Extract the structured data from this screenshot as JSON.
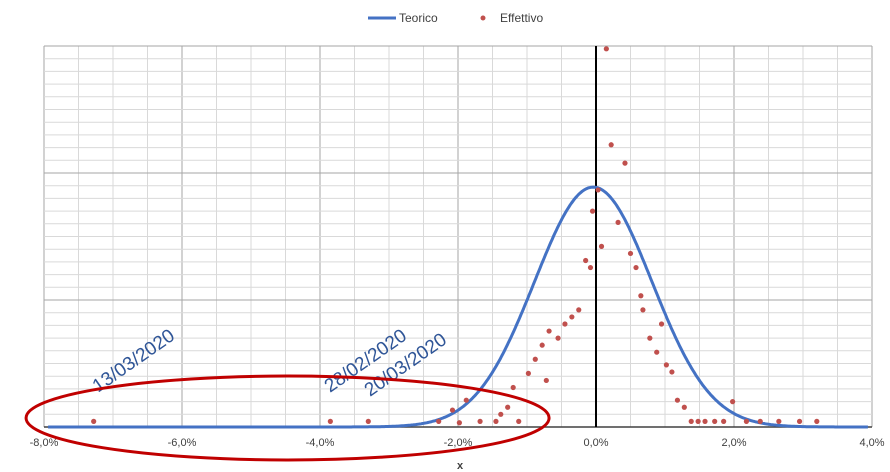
{
  "chart_data": {
    "type": "line",
    "title": "",
    "xlabel": "x",
    "ylabel": "",
    "xlim": [
      -0.08,
      0.04
    ],
    "ylim": [
      0,
      0.27
    ],
    "x_ticks": [
      -0.08,
      -0.06,
      -0.04,
      -0.02,
      0.0,
      0.02,
      0.04
    ],
    "x_tick_labels": [
      "-8,0%",
      "-6,0%",
      "-4,0%",
      "-2,0%",
      "0,0%",
      "2,0%",
      "4,0%"
    ],
    "grid": true,
    "legend": {
      "position": "top-center",
      "entries": [
        {
          "label": "Teorico",
          "color": "#4472c4",
          "marker": "line"
        },
        {
          "label": "Effettivo",
          "color": "#c0504d",
          "marker": "dot"
        }
      ]
    },
    "series": [
      {
        "name": "Teorico",
        "style": "line",
        "color": "#4472c4",
        "distribution": {
          "kind": "normal",
          "mean": -0.0004,
          "sd": 0.0085,
          "peak": 0.17
        }
      },
      {
        "name": "Effettivo",
        "style": "scatter",
        "color": "#c0504d",
        "points": [
          {
            "x": -0.0728,
            "y": 0.004
          },
          {
            "x": -0.0385,
            "y": 0.004
          },
          {
            "x": -0.033,
            "y": 0.004
          },
          {
            "x": -0.0228,
            "y": 0.004
          },
          {
            "x": -0.0208,
            "y": 0.012
          },
          {
            "x": -0.0198,
            "y": 0.003
          },
          {
            "x": -0.0188,
            "y": 0.019
          },
          {
            "x": -0.0168,
            "y": 0.004
          },
          {
            "x": -0.0145,
            "y": 0.004
          },
          {
            "x": -0.0138,
            "y": 0.009
          },
          {
            "x": -0.0128,
            "y": 0.014
          },
          {
            "x": -0.012,
            "y": 0.028
          },
          {
            "x": -0.0112,
            "y": 0.004
          },
          {
            "x": -0.0098,
            "y": 0.038
          },
          {
            "x": -0.0088,
            "y": 0.048
          },
          {
            "x": -0.0078,
            "y": 0.058
          },
          {
            "x": -0.0068,
            "y": 0.068
          },
          {
            "x": -0.0072,
            "y": 0.033
          },
          {
            "x": -0.0055,
            "y": 0.063
          },
          {
            "x": -0.0045,
            "y": 0.073
          },
          {
            "x": -0.0035,
            "y": 0.078
          },
          {
            "x": -0.0025,
            "y": 0.083
          },
          {
            "x": -0.0015,
            "y": 0.118
          },
          {
            "x": -0.0008,
            "y": 0.113
          },
          {
            "x": 0.0003,
            "y": 0.168
          },
          {
            "x": -0.0005,
            "y": 0.153
          },
          {
            "x": 0.0008,
            "y": 0.128
          },
          {
            "x": 0.0015,
            "y": 0.268
          },
          {
            "x": 0.0022,
            "y": 0.2
          },
          {
            "x": 0.0032,
            "y": 0.145
          },
          {
            "x": 0.0042,
            "y": 0.187
          },
          {
            "x": 0.005,
            "y": 0.123
          },
          {
            "x": 0.0058,
            "y": 0.113
          },
          {
            "x": 0.0065,
            "y": 0.093
          },
          {
            "x": 0.0068,
            "y": 0.083
          },
          {
            "x": 0.0078,
            "y": 0.063
          },
          {
            "x": 0.0088,
            "y": 0.053
          },
          {
            "x": 0.0095,
            "y": 0.073
          },
          {
            "x": 0.0102,
            "y": 0.044
          },
          {
            "x": 0.011,
            "y": 0.039
          },
          {
            "x": 0.0118,
            "y": 0.019
          },
          {
            "x": 0.0128,
            "y": 0.014
          },
          {
            "x": 0.0138,
            "y": 0.004
          },
          {
            "x": 0.0148,
            "y": 0.004
          },
          {
            "x": 0.0158,
            "y": 0.004
          },
          {
            "x": 0.0172,
            "y": 0.004
          },
          {
            "x": 0.0185,
            "y": 0.004
          },
          {
            "x": 0.0198,
            "y": 0.018
          },
          {
            "x": 0.0218,
            "y": 0.004
          },
          {
            "x": 0.0238,
            "y": 0.004
          },
          {
            "x": 0.0265,
            "y": 0.004
          },
          {
            "x": 0.0295,
            "y": 0.004
          },
          {
            "x": 0.032,
            "y": 0.004
          }
        ]
      }
    ],
    "annotations": [
      {
        "text": "13/03/2020",
        "color": "#2f5597",
        "x": -0.0728
      },
      {
        "text": "28/02/2020",
        "color": "#2f5597",
        "x": -0.0385
      },
      {
        "text": "20/03/2020",
        "color": "#2f5597",
        "x": -0.033
      }
    ],
    "highlight_ellipse": {
      "color": "#c00000",
      "x_from": -0.0826,
      "x_to": -0.0068
    }
  }
}
